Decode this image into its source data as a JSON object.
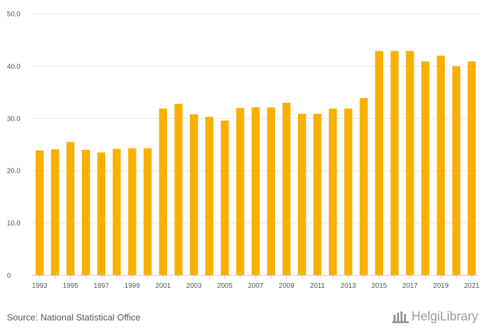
{
  "chart_data": {
    "type": "bar",
    "title": "",
    "xlabel": "",
    "ylabel": "",
    "ylim": [
      0,
      50
    ],
    "grid": true,
    "bar_color": "#F9B000",
    "y_ticks": [
      "0",
      "10.0",
      "20.0",
      "30.0",
      "40.0",
      "50.0"
    ],
    "y_tick_values": [
      0,
      10,
      20,
      30,
      40,
      50
    ],
    "categories": [
      "1993",
      "1994",
      "1995",
      "1996",
      "1997",
      "1998",
      "1999",
      "2000",
      "2001",
      "2002",
      "2003",
      "2004",
      "2005",
      "2006",
      "2007",
      "2008",
      "2009",
      "2010",
      "2011",
      "2012",
      "2013",
      "2014",
      "2015",
      "2016",
      "2017",
      "2018",
      "2019",
      "2020",
      "2021"
    ],
    "x_tick_labels": [
      "1993",
      "1995",
      "1997",
      "1999",
      "2001",
      "2003",
      "2005",
      "2007",
      "2009",
      "2011",
      "2013",
      "2015",
      "2017",
      "2019",
      "2021"
    ],
    "values": [
      23.9,
      24.1,
      25.5,
      24.0,
      23.5,
      24.2,
      24.3,
      24.3,
      31.9,
      32.8,
      30.8,
      30.3,
      29.6,
      32.0,
      32.1,
      32.1,
      33.0,
      30.9,
      30.9,
      31.9,
      31.9,
      33.9,
      42.9,
      42.9,
      42.9,
      40.9,
      42.0,
      40.0,
      40.9
    ]
  },
  "footer": {
    "source": "Source: National Statistical Office",
    "logo_text": "HelgiLibrary"
  },
  "colors": {
    "grid": "#e6e6e6",
    "axis": "#c8c8c8",
    "text": "#555555"
  }
}
